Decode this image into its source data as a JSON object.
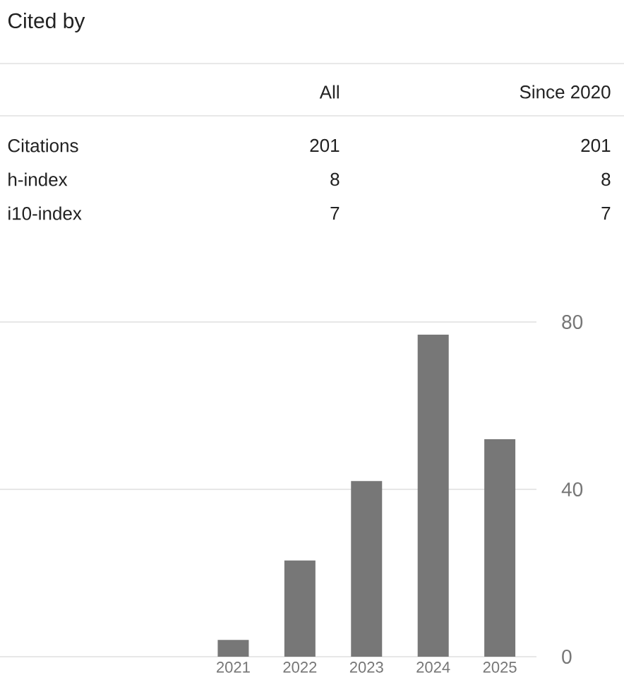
{
  "chart_data": [
    {
      "type": "other",
      "title": "Cited by",
      "categories": [
        "Citations",
        "h-index",
        "i10-index"
      ],
      "series": [
        {
          "name": "All",
          "values": [
            201,
            8,
            7
          ]
        },
        {
          "name": "Since 2020",
          "values": [
            201,
            8,
            7
          ]
        }
      ],
      "data_labels": true
    },
    {
      "type": "bar",
      "categories": [
        null,
        null,
        null,
        "2021",
        "2022",
        "2023",
        "2024",
        "2025"
      ],
      "values": [
        null,
        null,
        null,
        4,
        23,
        42,
        77,
        52
      ],
      "color": "#777777",
      "ylim": [
        0,
        80
      ],
      "yticks": [
        0,
        40,
        80
      ],
      "grid": "y"
    }
  ]
}
